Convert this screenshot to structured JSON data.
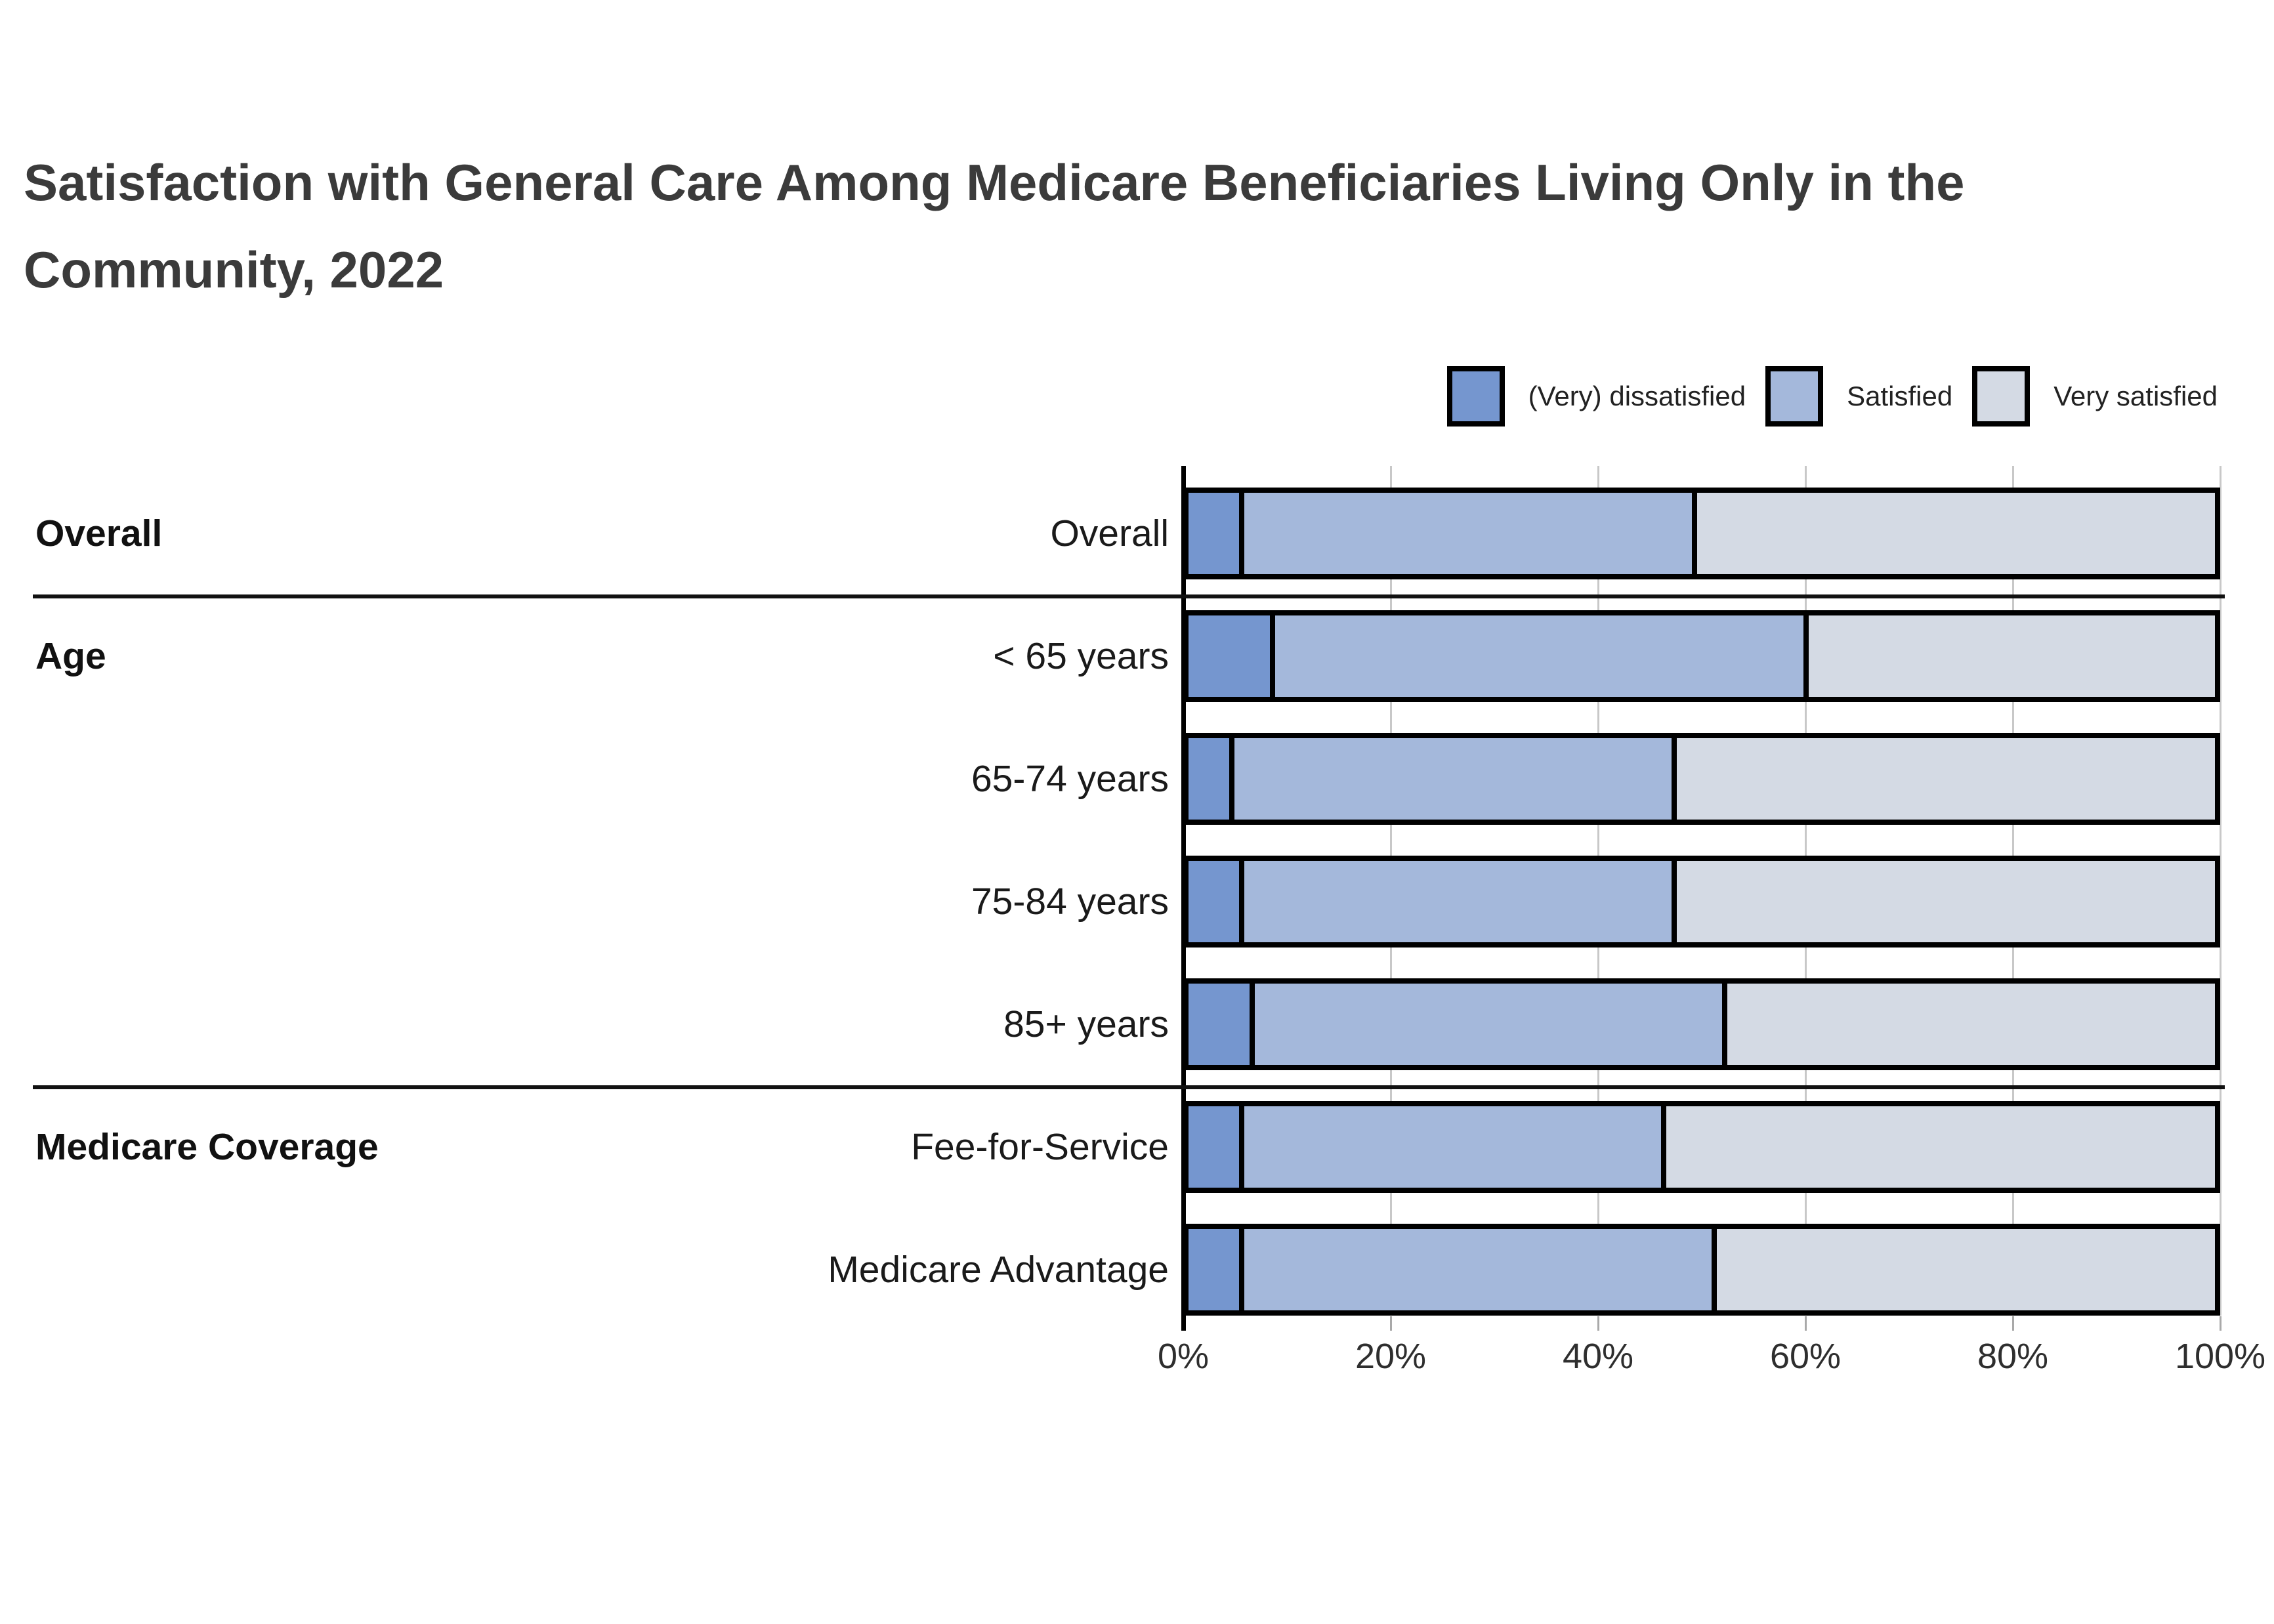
{
  "title": "Satisfaction with General Care Among Medicare Beneficiaries Living Only in the Community, 2022",
  "chart_data": {
    "type": "bar",
    "orientation": "horizontal",
    "stacked": true,
    "title": "Satisfaction with General Care Among Medicare Beneficiaries Living Only in the Community, 2022",
    "categories": [
      "Overall",
      "< 65 years",
      "65-74 years",
      "75-84 years",
      "85+ years",
      "Fee-for-Service",
      "Medicare Advantage"
    ],
    "sections": [
      {
        "label": "Overall",
        "rows": [
          0
        ]
      },
      {
        "label": "Age",
        "rows": [
          1,
          2,
          3,
          4
        ]
      },
      {
        "label": "Medicare Coverage",
        "rows": [
          5,
          6
        ]
      }
    ],
    "series": [
      {
        "name": "(Very) dissatisfied",
        "color": "#7596CF",
        "values": [
          5,
          8,
          4,
          5,
          6,
          5,
          5
        ]
      },
      {
        "name": "Satisfied",
        "color": "#A4B8DB",
        "values": [
          44,
          52,
          43,
          42,
          46,
          41,
          46
        ]
      },
      {
        "name": "Very satisfied",
        "color": "#D4DAE4",
        "values": [
          51,
          40,
          53,
          53,
          48,
          54,
          49
        ]
      }
    ],
    "x_ticks": [
      "0%",
      "20%",
      "40%",
      "60%",
      "80%",
      "100%"
    ],
    "xlim": [
      0,
      100
    ],
    "grid": true,
    "legend_position": "top-right",
    "bar_border_color": "#000000",
    "grid_color": "#c8c8c8",
    "axis_color": "#000000"
  }
}
